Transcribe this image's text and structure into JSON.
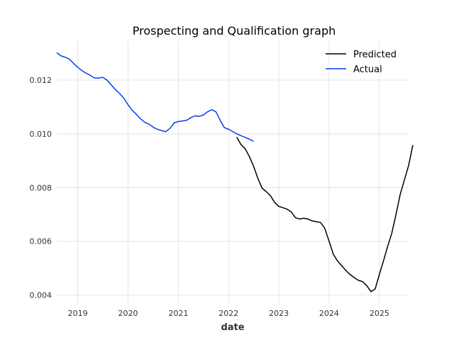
{
  "chart_data": {
    "type": "line",
    "title": "Prospecting and Qualification graph",
    "xlabel": "date",
    "ylabel": "",
    "x_axis_type": "date",
    "xlim": [
      "2018-08-01",
      "2025-08-01"
    ],
    "ylim": [
      0.0037,
      0.01345
    ],
    "x_ticks": [
      "2019",
      "2020",
      "2021",
      "2022",
      "2023",
      "2024",
      "2025"
    ],
    "y_ticks": [
      "0.004",
      "0.006",
      "0.008",
      "0.010",
      "0.012"
    ],
    "grid": true,
    "legend_position": "top-right",
    "series": [
      {
        "name": "Predicted",
        "color": "#000000",
        "points": [
          [
            "2022-03-01",
            0.00988
          ],
          [
            "2022-04-01",
            0.0096
          ],
          [
            "2022-05-01",
            0.00945
          ],
          [
            "2022-06-01",
            0.00915
          ],
          [
            "2022-07-01",
            0.0088
          ],
          [
            "2022-08-01",
            0.00835
          ],
          [
            "2022-09-01",
            0.00798
          ],
          [
            "2022-10-01",
            0.00785
          ],
          [
            "2022-11-01",
            0.0077
          ],
          [
            "2022-12-01",
            0.00745
          ],
          [
            "2023-01-01",
            0.0073
          ],
          [
            "2023-02-01",
            0.00725
          ],
          [
            "2023-03-01",
            0.0072
          ],
          [
            "2023-04-01",
            0.0071
          ],
          [
            "2023-05-01",
            0.00688
          ],
          [
            "2023-06-01",
            0.00683
          ],
          [
            "2023-07-01",
            0.00686
          ],
          [
            "2023-08-01",
            0.00683
          ],
          [
            "2023-09-01",
            0.00676
          ],
          [
            "2023-10-01",
            0.00673
          ],
          [
            "2023-11-01",
            0.0067
          ],
          [
            "2023-12-01",
            0.00648
          ],
          [
            "2024-01-01",
            0.006
          ],
          [
            "2024-02-01",
            0.00552
          ],
          [
            "2024-03-01",
            0.00528
          ],
          [
            "2024-04-01",
            0.0051
          ],
          [
            "2024-05-01",
            0.00492
          ],
          [
            "2024-06-01",
            0.00477
          ],
          [
            "2024-07-01",
            0.00465
          ],
          [
            "2024-08-01",
            0.00455
          ],
          [
            "2024-09-01",
            0.0045
          ],
          [
            "2024-10-01",
            0.00435
          ],
          [
            "2024-11-01",
            0.00413
          ],
          [
            "2024-12-01",
            0.00423
          ],
          [
            "2025-01-01",
            0.00478
          ],
          [
            "2025-02-01",
            0.0053
          ],
          [
            "2025-03-01",
            0.0058
          ],
          [
            "2025-04-01",
            0.0063
          ],
          [
            "2025-05-01",
            0.007
          ],
          [
            "2025-06-01",
            0.00775
          ],
          [
            "2025-07-01",
            0.00828
          ],
          [
            "2025-08-01",
            0.00882
          ],
          [
            "2025-09-01",
            0.00958
          ]
        ]
      },
      {
        "name": "Actual",
        "color": "#0a3cf0",
        "points": [
          [
            "2018-08-01",
            0.01302
          ],
          [
            "2018-09-01",
            0.0129
          ],
          [
            "2018-10-01",
            0.01285
          ],
          [
            "2018-11-01",
            0.01278
          ],
          [
            "2018-12-01",
            0.01262
          ],
          [
            "2019-01-01",
            0.01247
          ],
          [
            "2019-02-01",
            0.01235
          ],
          [
            "2019-03-01",
            0.01226
          ],
          [
            "2019-04-01",
            0.01218
          ],
          [
            "2019-05-01",
            0.01208
          ],
          [
            "2019-06-01",
            0.01207
          ],
          [
            "2019-07-01",
            0.0121
          ],
          [
            "2019-08-01",
            0.012
          ],
          [
            "2019-09-01",
            0.01182
          ],
          [
            "2019-10-01",
            0.01165
          ],
          [
            "2019-11-01",
            0.0115
          ],
          [
            "2019-12-01",
            0.01133
          ],
          [
            "2020-01-01",
            0.01108
          ],
          [
            "2020-02-01",
            0.01087
          ],
          [
            "2020-03-01",
            0.01073
          ],
          [
            "2020-04-01",
            0.01056
          ],
          [
            "2020-05-01",
            0.01043
          ],
          [
            "2020-06-01",
            0.01036
          ],
          [
            "2020-07-01",
            0.01025
          ],
          [
            "2020-08-01",
            0.01017
          ],
          [
            "2020-09-01",
            0.01012
          ],
          [
            "2020-10-01",
            0.01008
          ],
          [
            "2020-11-01",
            0.0102
          ],
          [
            "2020-12-01",
            0.01041
          ],
          [
            "2021-01-01",
            0.01046
          ],
          [
            "2021-02-01",
            0.01048
          ],
          [
            "2021-03-01",
            0.0105
          ],
          [
            "2021-04-01",
            0.0106
          ],
          [
            "2021-05-01",
            0.01067
          ],
          [
            "2021-06-01",
            0.01065
          ],
          [
            "2021-07-01",
            0.0107
          ],
          [
            "2021-08-01",
            0.01082
          ],
          [
            "2021-09-01",
            0.0109
          ],
          [
            "2021-10-01",
            0.01082
          ],
          [
            "2021-11-01",
            0.0105
          ],
          [
            "2021-12-01",
            0.01023
          ],
          [
            "2022-01-01",
            0.01017
          ],
          [
            "2022-02-01",
            0.01008
          ],
          [
            "2022-03-01",
            0.01
          ],
          [
            "2022-04-01",
            0.00993
          ],
          [
            "2022-05-01",
            0.00987
          ],
          [
            "2022-06-01",
            0.0098
          ],
          [
            "2022-07-01",
            0.00972
          ]
        ]
      }
    ]
  }
}
